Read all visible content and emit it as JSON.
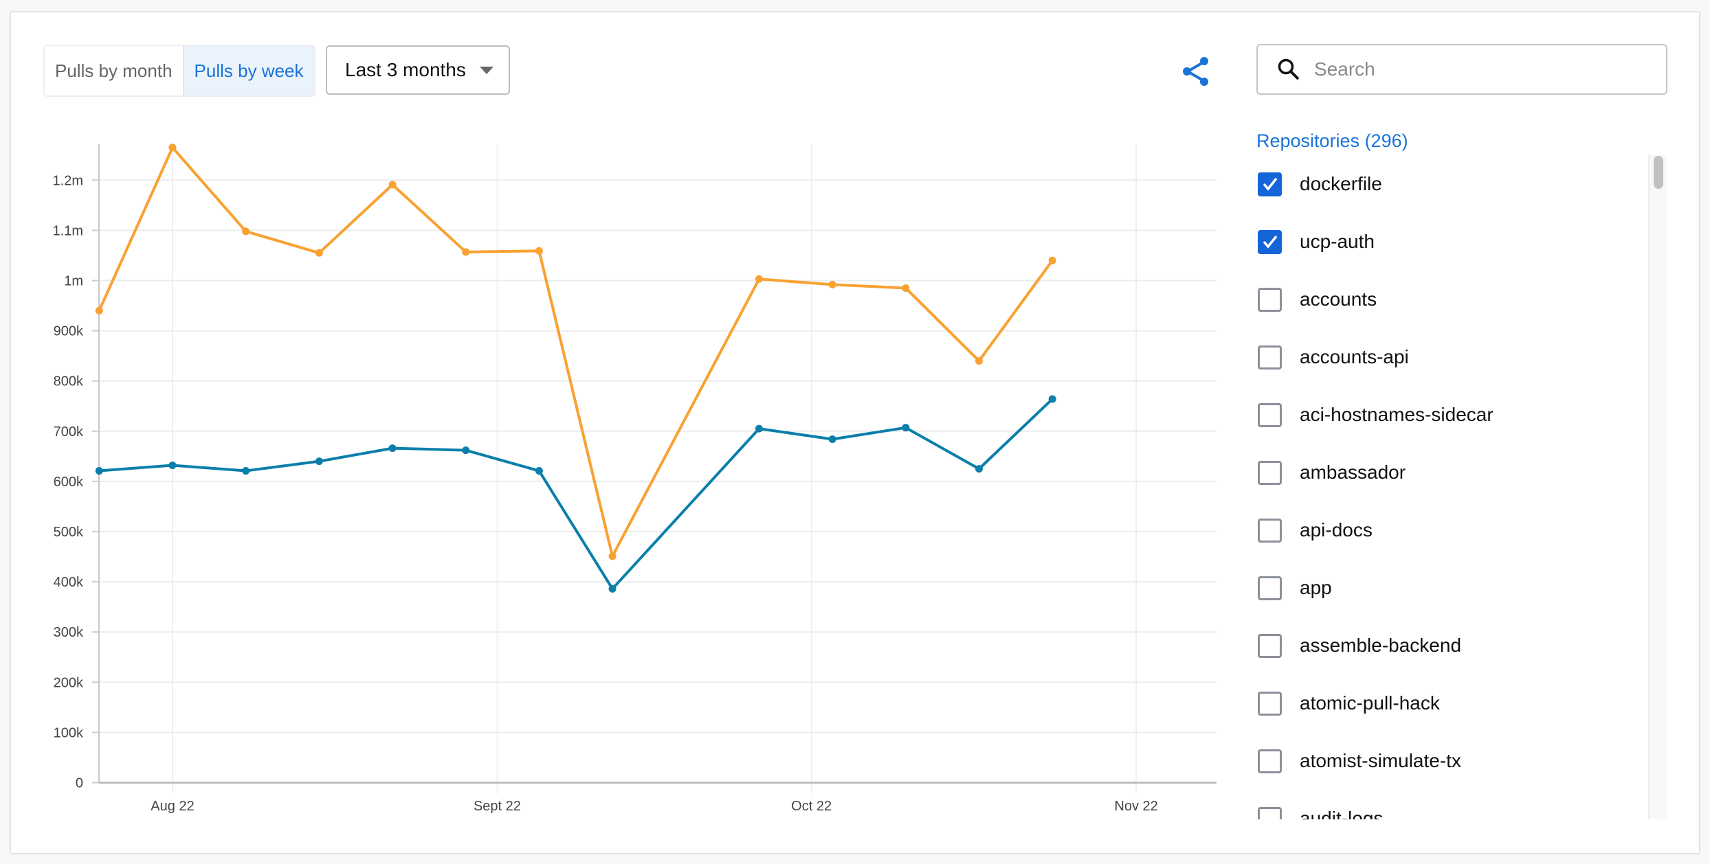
{
  "controls": {
    "toggle": [
      {
        "label": "Pulls by month",
        "active": false
      },
      {
        "label": "Pulls by week",
        "active": true
      }
    ],
    "range": "Last 3 months",
    "share_icon": "share-icon"
  },
  "sidebar": {
    "search_placeholder": "Search",
    "title": "Repositories (296)",
    "items": [
      {
        "label": "dockerfile",
        "checked": true
      },
      {
        "label": "ucp-auth",
        "checked": true
      },
      {
        "label": "accounts",
        "checked": false
      },
      {
        "label": "accounts-api",
        "checked": false
      },
      {
        "label": "aci-hostnames-sidecar",
        "checked": false
      },
      {
        "label": "ambassador",
        "checked": false
      },
      {
        "label": "api-docs",
        "checked": false
      },
      {
        "label": "app",
        "checked": false
      },
      {
        "label": "assemble-backend",
        "checked": false
      },
      {
        "label": "atomic-pull-hack",
        "checked": false
      },
      {
        "label": "atomist-simulate-tx",
        "checked": false
      },
      {
        "label": "audit-logs",
        "checked": false
      }
    ]
  },
  "chart_data": {
    "type": "line",
    "title": "",
    "xlabel": "",
    "ylabel": "",
    "x": [
      "2022-07-25",
      "2022-08-01",
      "2022-08-08",
      "2022-08-15",
      "2022-08-22",
      "2022-08-29",
      "2022-09-05",
      "2022-09-12",
      "2022-09-26",
      "2022-10-03",
      "2022-10-10",
      "2022-10-17",
      "2022-10-24"
    ],
    "x_ticks": [
      {
        "date": "2022-08-01",
        "label": "Aug 22"
      },
      {
        "date": "2022-09-01",
        "label": "Sept 22"
      },
      {
        "date": "2022-10-01",
        "label": "Oct 22"
      },
      {
        "date": "2022-11-01",
        "label": "Nov 22"
      }
    ],
    "y_ticks": [
      {
        "value": 0,
        "label": "0"
      },
      {
        "value": 100000,
        "label": "100k"
      },
      {
        "value": 200000,
        "label": "200k"
      },
      {
        "value": 300000,
        "label": "300k"
      },
      {
        "value": 400000,
        "label": "400k"
      },
      {
        "value": 500000,
        "label": "500k"
      },
      {
        "value": 600000,
        "label": "600k"
      },
      {
        "value": 700000,
        "label": "700k"
      },
      {
        "value": 800000,
        "label": "800k"
      },
      {
        "value": 900000,
        "label": "900k"
      },
      {
        "value": 1000000,
        "label": "1m"
      },
      {
        "value": 1100000,
        "label": "1.1m"
      },
      {
        "value": 1200000,
        "label": "1.2m"
      }
    ],
    "xlim": [
      "2022-07-25",
      "2022-11-08"
    ],
    "ylim": [
      0,
      1265000
    ],
    "grid": true,
    "series": [
      {
        "color": "#f9a131",
        "values": [
          940000,
          1265000,
          1098000,
          1055000,
          1191000,
          1057000,
          1059000,
          451000,
          1003000,
          992000,
          985000,
          840000,
          1040000
        ]
      },
      {
        "color": "#0b7fab",
        "values": [
          621000,
          632000,
          621000,
          640000,
          666000,
          662000,
          621000,
          386000,
          705000,
          684000,
          707000,
          625000,
          764000
        ]
      }
    ]
  }
}
